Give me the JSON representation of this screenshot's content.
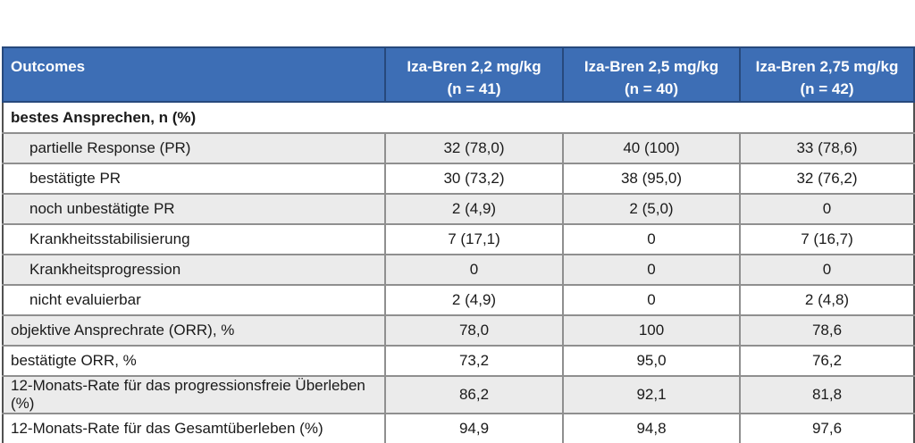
{
  "table": {
    "accent_color": "#3d6eb5",
    "header_border_color": "#27497c",
    "row_alt_color": "#ebebeb",
    "grid_color": "#8f8f8f",
    "header": {
      "outcomes_label": "Outcomes",
      "dose_columns": [
        {
          "line1": "Iza-Bren 2,2 mg/kg",
          "line2": "(n = 41)"
        },
        {
          "line1": "Iza-Bren 2,5 mg/kg",
          "line2": "(n = 40)"
        },
        {
          "line1": "Iza-Bren 2,75 mg/kg",
          "line2": "(n = 42)"
        }
      ]
    },
    "section_header": "bestes Ansprechen, n (%)",
    "rows": [
      {
        "label": "partielle Response (PR)",
        "values": [
          "32 (78,0)",
          "40 (100)",
          "33 (78,6)"
        ]
      },
      {
        "label": "bestätigte PR",
        "values": [
          "30 (73,2)",
          "38 (95,0)",
          "32 (76,2)"
        ]
      },
      {
        "label": "noch unbestätigte PR",
        "values": [
          "2 (4,9)",
          "2 (5,0)",
          "0"
        ]
      },
      {
        "label": "Krankheitsstabilisierung",
        "values": [
          "7 (17,1)",
          "0",
          "7 (16,7)"
        ]
      },
      {
        "label": "Krankheitsprogression",
        "values": [
          "0",
          "0",
          "0"
        ]
      },
      {
        "label": "nicht evaluierbar",
        "values": [
          "2 (4,9)",
          "0",
          "2 (4,8)"
        ]
      },
      {
        "label": "objektive Ansprechrate (ORR), %",
        "values": [
          "78,0",
          "100",
          "78,6"
        ]
      },
      {
        "label": "bestätigte ORR, %",
        "values": [
          "73,2",
          "95,0",
          "76,2"
        ]
      },
      {
        "label": "12-Monats-Rate für das progressionsfreie Überleben (%)",
        "values": [
          "86,2",
          "92,1",
          "81,8"
        ]
      },
      {
        "label": "12-Monats-Rate für das Gesamtüberleben (%)",
        "values": [
          "94,9",
          "94,8",
          "97,6"
        ]
      }
    ]
  },
  "chart_data": {
    "type": "table",
    "columns": [
      "Outcomes",
      "Iza-Bren 2,2 mg/kg (n = 41)",
      "Iza-Bren 2,5 mg/kg (n = 40)",
      "Iza-Bren 2,75 mg/kg (n = 42)"
    ],
    "rows": [
      [
        "bestes Ansprechen, n (%)",
        "",
        "",
        ""
      ],
      [
        "partielle Response (PR)",
        "32 (78,0)",
        "40 (100)",
        "33 (78,6)"
      ],
      [
        "bestätigte PR",
        "30 (73,2)",
        "38 (95,0)",
        "32 (76,2)"
      ],
      [
        "noch unbestätigte PR",
        "2 (4,9)",
        "2 (5,0)",
        "0"
      ],
      [
        "Krankheitsstabilisierung",
        "7 (17,1)",
        "0",
        "7 (16,7)"
      ],
      [
        "Krankheitsprogression",
        "0",
        "0",
        "0"
      ],
      [
        "nicht evaluierbar",
        "2 (4,9)",
        "0",
        "2 (4,8)"
      ],
      [
        "objektive Ansprechrate (ORR), %",
        "78,0",
        "100",
        "78,6"
      ],
      [
        "bestätigte ORR, %",
        "73,2",
        "95,0",
        "76,2"
      ],
      [
        "12-Monats-Rate für das progressionsfreie Überleben (%)",
        "86,2",
        "92,1",
        "81,8"
      ],
      [
        "12-Monats-Rate für das Gesamtüberleben (%)",
        "94,9",
        "94,8",
        "97,6"
      ]
    ]
  }
}
